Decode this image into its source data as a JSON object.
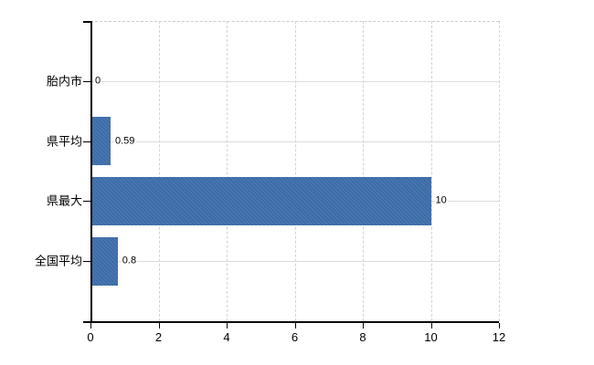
{
  "chart_data": {
    "type": "bar",
    "orientation": "horizontal",
    "title": "",
    "categories": [
      "胎内市",
      "県平均",
      "県最大",
      "全国平均"
    ],
    "values": [
      0,
      0.59,
      10,
      0.8
    ],
    "value_labels": [
      "0",
      "0.59",
      "10",
      "0.8"
    ],
    "xlim": [
      0,
      12
    ],
    "x_ticks": [
      0,
      2,
      4,
      6,
      8,
      10,
      12
    ],
    "x_tick_labels": [
      "0",
      "2",
      "4",
      "6",
      "8",
      "10",
      "12"
    ],
    "grid": true,
    "legend": "none",
    "colors": {
      "bar": "#3d6ca6",
      "bar_dither_light": "#4a79b5",
      "vertical_grid": "#d6d2d6",
      "horizontal_grid": "#d9ded9",
      "plot_top_border": "#cccccc",
      "axis": "#000000",
      "text": "#000000",
      "background": "#ffffff"
    }
  }
}
